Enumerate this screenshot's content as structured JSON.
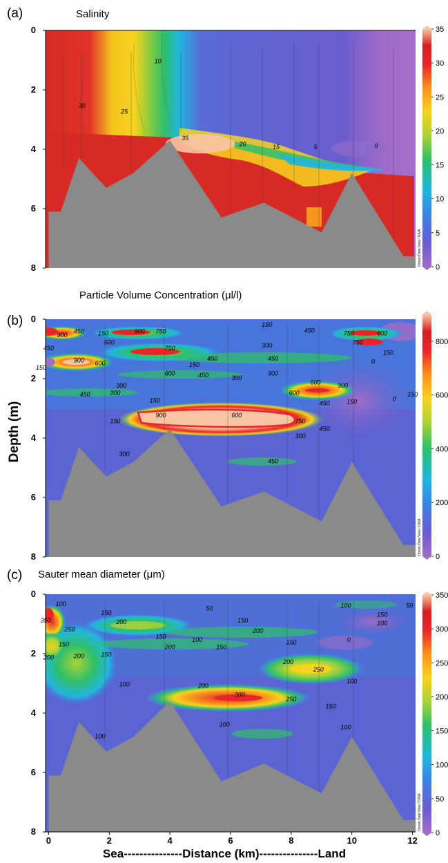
{
  "figure": {
    "ylabel": "Depth (m)",
    "xlabel": "Sea---------------Distance (km)---------------Land",
    "watermark": "Ocean Data View / DIVA"
  },
  "colors": {
    "bathymetry": "#8a8a8a",
    "colorbar_stops": [
      "#a26bc6",
      "#6a5ccf",
      "#3b83e0",
      "#22b6dd",
      "#2fbf6a",
      "#a8d23a",
      "#f6d31e",
      "#f7951e",
      "#e8262a",
      "#d21f24",
      "#f7c5a3"
    ]
  },
  "chart_data": [
    {
      "type": "heatmap",
      "panel": "(a)",
      "title": "Salinity",
      "unit": "",
      "x_ticks": [
        0,
        2,
        4,
        6,
        8,
        10,
        12
      ],
      "y_ticks": [
        0,
        2,
        4,
        6,
        8
      ],
      "xlim": [
        -0.1,
        12.1
      ],
      "ylim": [
        0,
        8
      ],
      "colorbar": {
        "min": 0,
        "max": 35,
        "ticks": [
          0,
          5,
          10,
          15,
          20,
          25,
          30,
          35
        ]
      },
      "contour_labels": [
        {
          "text": "10",
          "x": 3.6,
          "y": 1.1
        },
        {
          "text": "30",
          "x": 1.1,
          "y": 2.6
        },
        {
          "text": "25",
          "x": 2.5,
          "y": 2.8
        },
        {
          "text": "35",
          "x": 4.5,
          "y": 3.7
        },
        {
          "text": "20",
          "x": 6.4,
          "y": 3.9
        },
        {
          "text": "15",
          "x": 7.5,
          "y": 4.0
        },
        {
          "text": "5",
          "x": 8.8,
          "y": 4.0
        },
        {
          "text": "0",
          "x": 10.8,
          "y": 3.95
        }
      ],
      "seafloor": [
        {
          "x": 0.0,
          "depth": 6.1
        },
        {
          "x": 0.4,
          "depth": 6.1
        },
        {
          "x": 1.0,
          "depth": 4.3
        },
        {
          "x": 1.9,
          "depth": 5.3
        },
        {
          "x": 2.8,
          "depth": 4.8
        },
        {
          "x": 4.0,
          "depth": 3.7
        },
        {
          "x": 5.7,
          "depth": 6.3
        },
        {
          "x": 7.1,
          "depth": 5.8
        },
        {
          "x": 9.0,
          "depth": 6.8
        },
        {
          "x": 10.0,
          "depth": 4.8
        },
        {
          "x": 11.7,
          "depth": 7.6
        },
        {
          "x": 12.1,
          "depth": 7.6
        }
      ]
    },
    {
      "type": "heatmap",
      "panel": "(b)",
      "title": "Particle Volume Concentration (μl/l)",
      "unit": "μl/l",
      "x_ticks": [
        0,
        2,
        4,
        6,
        8,
        10,
        12
      ],
      "y_ticks": [
        0,
        2,
        4,
        6,
        8
      ],
      "xlim": [
        -0.1,
        12.1
      ],
      "ylim": [
        0,
        8
      ],
      "colorbar": {
        "min": 0,
        "max": 900,
        "ticks": [
          0,
          200,
          400,
          600,
          800
        ]
      },
      "contour_labels": [
        {
          "text": "900",
          "x": 0.45,
          "y": 0.6
        },
        {
          "text": "450",
          "x": 1.0,
          "y": 0.48
        },
        {
          "text": "150",
          "x": 1.8,
          "y": 0.55
        },
        {
          "text": "900",
          "x": 3.0,
          "y": 0.48
        },
        {
          "text": "750",
          "x": 3.7,
          "y": 0.48
        },
        {
          "text": "150",
          "x": 7.2,
          "y": 0.25
        },
        {
          "text": "450",
          "x": 8.6,
          "y": 0.45
        },
        {
          "text": "750",
          "x": 9.9,
          "y": 0.55
        },
        {
          "text": "600",
          "x": 11.0,
          "y": 0.55
        },
        {
          "text": "600",
          "x": 2.0,
          "y": 0.85
        },
        {
          "text": "750",
          "x": 10.2,
          "y": 0.85
        },
        {
          "text": "450",
          "x": 0.0,
          "y": 1.05
        },
        {
          "text": "750",
          "x": 4.0,
          "y": 1.05
        },
        {
          "text": "300",
          "x": 7.2,
          "y": 0.95
        },
        {
          "text": "150",
          "x": 11.2,
          "y": 1.2
        },
        {
          "text": "450",
          "x": 5.4,
          "y": 1.4
        },
        {
          "text": "450",
          "x": 7.4,
          "y": 1.4
        },
        {
          "text": "0",
          "x": 10.7,
          "y": 1.5
        },
        {
          "text": "900",
          "x": 1.0,
          "y": 1.45
        },
        {
          "text": "150",
          "x": -0.25,
          "y": 1.7
        },
        {
          "text": "600",
          "x": 1.7,
          "y": 1.55
        },
        {
          "text": "150",
          "x": 4.8,
          "y": 1.6
        },
        {
          "text": "600",
          "x": 4.0,
          "y": 1.9
        },
        {
          "text": "450",
          "x": 5.1,
          "y": 1.95
        },
        {
          "text": "300",
          "x": 6.2,
          "y": 2.05
        },
        {
          "text": "300",
          "x": 7.4,
          "y": 1.9
        },
        {
          "text": "300",
          "x": 2.4,
          "y": 2.3
        },
        {
          "text": "600",
          "x": 8.8,
          "y": 2.2
        },
        {
          "text": "300",
          "x": 9.7,
          "y": 2.3
        },
        {
          "text": "450",
          "x": 1.2,
          "y": 2.6
        },
        {
          "text": "300",
          "x": 2.2,
          "y": 2.55
        },
        {
          "text": "600",
          "x": 8.1,
          "y": 2.55
        },
        {
          "text": "0",
          "x": 11.4,
          "y": 2.75
        },
        {
          "text": "150",
          "x": 12.0,
          "y": 2.6
        },
        {
          "text": "150",
          "x": 3.5,
          "y": 2.8
        },
        {
          "text": "450",
          "x": 9.1,
          "y": 2.9
        },
        {
          "text": "150",
          "x": 10.0,
          "y": 2.85
        },
        {
          "text": "150",
          "x": 2.2,
          "y": 3.5
        },
        {
          "text": "900",
          "x": 3.7,
          "y": 3.3
        },
        {
          "text": "600",
          "x": 6.2,
          "y": 3.3
        },
        {
          "text": "750",
          "x": 8.3,
          "y": 3.5
        },
        {
          "text": "450",
          "x": 9.1,
          "y": 3.75
        },
        {
          "text": "300",
          "x": 8.3,
          "y": 4.0
        },
        {
          "text": "300",
          "x": 2.5,
          "y": 4.6
        },
        {
          "text": "450",
          "x": 7.4,
          "y": 4.85
        }
      ],
      "seafloor": [
        {
          "x": 0.0,
          "depth": 6.1
        },
        {
          "x": 0.4,
          "depth": 6.1
        },
        {
          "x": 1.0,
          "depth": 4.3
        },
        {
          "x": 1.9,
          "depth": 5.3
        },
        {
          "x": 2.8,
          "depth": 4.8
        },
        {
          "x": 4.0,
          "depth": 3.7
        },
        {
          "x": 5.7,
          "depth": 6.3
        },
        {
          "x": 7.1,
          "depth": 5.8
        },
        {
          "x": 9.0,
          "depth": 6.8
        },
        {
          "x": 10.0,
          "depth": 4.8
        },
        {
          "x": 11.7,
          "depth": 7.6
        },
        {
          "x": 12.1,
          "depth": 7.6
        }
      ]
    },
    {
      "type": "heatmap",
      "panel": "(c)",
      "title": "Sauter mean diameter (μm)",
      "unit": "μm",
      "x_ticks": [
        0,
        2,
        4,
        6,
        8,
        10,
        12
      ],
      "y_ticks": [
        0,
        2,
        4,
        6,
        8
      ],
      "xlim": [
        -0.1,
        12.1
      ],
      "ylim": [
        0,
        8
      ],
      "colorbar": {
        "min": 0,
        "max": 350,
        "ticks": [
          0,
          50,
          100,
          150,
          200,
          250,
          300,
          350
        ]
      },
      "contour_labels": [
        {
          "text": "100",
          "x": 0.4,
          "y": 0.4
        },
        {
          "text": "50",
          "x": 5.3,
          "y": 0.55
        },
        {
          "text": "100",
          "x": 9.8,
          "y": 0.45
        },
        {
          "text": "50",
          "x": 11.9,
          "y": 0.45
        },
        {
          "text": "150",
          "x": 1.9,
          "y": 0.7
        },
        {
          "text": "150",
          "x": 11.0,
          "y": 0.75
        },
        {
          "text": "350",
          "x": -0.1,
          "y": 0.95
        },
        {
          "text": "200",
          "x": 2.4,
          "y": 1.0
        },
        {
          "text": "150",
          "x": 6.4,
          "y": 0.95
        },
        {
          "text": "100",
          "x": 11.0,
          "y": 1.05
        },
        {
          "text": "250",
          "x": 0.7,
          "y": 1.25
        },
        {
          "text": "200",
          "x": 6.9,
          "y": 1.3
        },
        {
          "text": "150",
          "x": 3.7,
          "y": 1.5
        },
        {
          "text": "100",
          "x": 4.9,
          "y": 1.6
        },
        {
          "text": "0",
          "x": 9.9,
          "y": 1.6
        },
        {
          "text": "150",
          "x": 0.5,
          "y": 1.75
        },
        {
          "text": "200",
          "x": 4.0,
          "y": 1.85
        },
        {
          "text": "150",
          "x": 5.7,
          "y": 1.85
        },
        {
          "text": "150",
          "x": 8.0,
          "y": 1.7
        },
        {
          "text": "200",
          "x": 0.0,
          "y": 2.2
        },
        {
          "text": "200",
          "x": 1.0,
          "y": 2.15
        },
        {
          "text": "150",
          "x": 1.9,
          "y": 2.1
        },
        {
          "text": "200",
          "x": 7.9,
          "y": 2.35
        },
        {
          "text": "250",
          "x": 8.9,
          "y": 2.6
        },
        {
          "text": "100",
          "x": 2.5,
          "y": 3.1
        },
        {
          "text": "200",
          "x": 5.1,
          "y": 3.15
        },
        {
          "text": "100",
          "x": 10.0,
          "y": 3.0
        },
        {
          "text": "300",
          "x": 6.3,
          "y": 3.45
        },
        {
          "text": "250",
          "x": 8.0,
          "y": 3.6
        },
        {
          "text": "150",
          "x": 9.3,
          "y": 3.85
        },
        {
          "text": "100",
          "x": 5.8,
          "y": 4.45
        },
        {
          "text": "100",
          "x": 9.8,
          "y": 4.55
        },
        {
          "text": "100",
          "x": 1.7,
          "y": 4.85
        }
      ],
      "seafloor": [
        {
          "x": 0.0,
          "depth": 6.1
        },
        {
          "x": 0.4,
          "depth": 6.1
        },
        {
          "x": 1.0,
          "depth": 4.3
        },
        {
          "x": 1.9,
          "depth": 5.3
        },
        {
          "x": 2.8,
          "depth": 4.8
        },
        {
          "x": 4.0,
          "depth": 3.6
        },
        {
          "x": 5.7,
          "depth": 6.3
        },
        {
          "x": 7.1,
          "depth": 5.7
        },
        {
          "x": 9.0,
          "depth": 6.7
        },
        {
          "x": 10.0,
          "depth": 4.8
        },
        {
          "x": 11.7,
          "depth": 7.6
        },
        {
          "x": 12.1,
          "depth": 7.6
        }
      ]
    }
  ]
}
